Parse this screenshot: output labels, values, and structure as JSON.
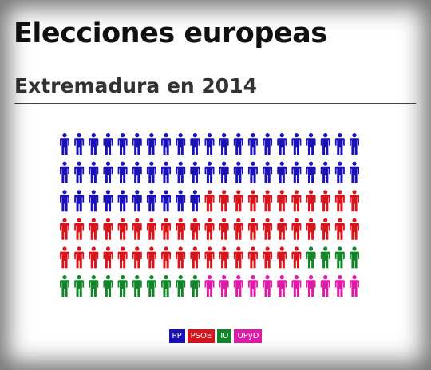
{
  "title": "Elecciones europeas",
  "subtitle": "Extremadura en 2014",
  "colors": {
    "PP": "#1a12b8",
    "PSOE": "#d8141c",
    "IU": "#12852a",
    "UPyD": "#de1aa6"
  },
  "chart_data": {
    "type": "pictogram",
    "columns": 21,
    "categories": [
      "PP",
      "PSOE",
      "IU",
      "UPyD"
    ],
    "values": [
      52,
      49,
      14,
      11
    ],
    "legend": {
      "position": "bottom-center",
      "entries": [
        "PP",
        "PSOE",
        "IU",
        "UPyD"
      ]
    }
  }
}
